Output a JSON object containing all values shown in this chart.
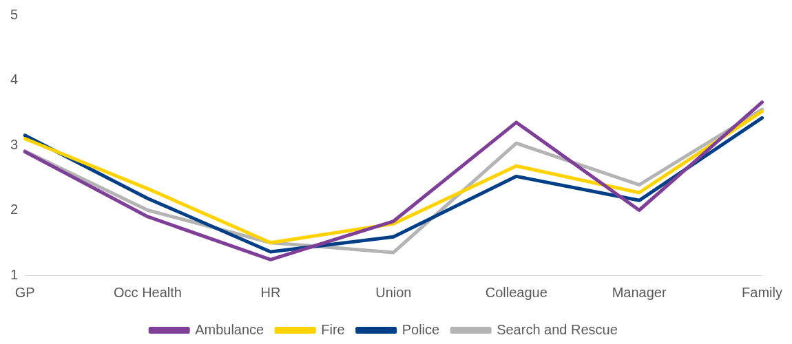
{
  "chart_data": {
    "type": "line",
    "categories": [
      "GP",
      "Occ Health",
      "HR",
      "Union",
      "Colleague",
      "Manager",
      "Family"
    ],
    "series": [
      {
        "name": "Ambulance",
        "color": "#7f3f98",
        "values": [
          2.9,
          1.9,
          1.24,
          1.83,
          3.35,
          2.0,
          3.66
        ]
      },
      {
        "name": "Fire",
        "color": "#ffd200",
        "values": [
          3.1,
          2.33,
          1.5,
          1.79,
          2.68,
          2.27,
          3.52
        ]
      },
      {
        "name": "Police",
        "color": "#003f87",
        "values": [
          3.15,
          2.18,
          1.36,
          1.59,
          2.52,
          2.15,
          3.42
        ]
      },
      {
        "name": "Search and Rescue",
        "color": "#b4b4b4",
        "values": [
          2.91,
          2.0,
          1.5,
          1.35,
          3.03,
          2.39,
          3.55
        ]
      }
    ],
    "ylim": [
      1,
      5
    ],
    "yticks": [
      1,
      2,
      3,
      4,
      5
    ],
    "grid": false,
    "legend": "bottom",
    "marker": "none",
    "line_style": "solid"
  }
}
